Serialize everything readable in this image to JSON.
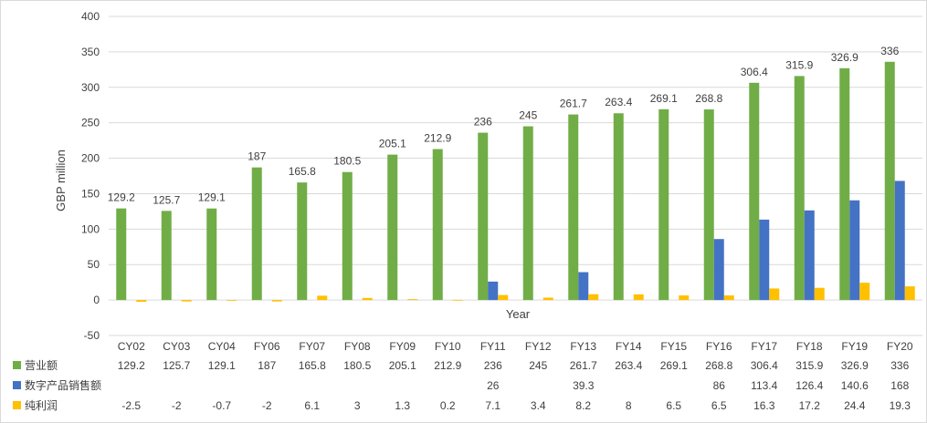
{
  "chart_data": {
    "type": "bar",
    "title": "",
    "xlabel": "Year",
    "ylabel": "GBP million",
    "ylim": [
      -50,
      400
    ],
    "yticks": [
      -50,
      0,
      50,
      100,
      150,
      200,
      250,
      300,
      350,
      400
    ],
    "grid": true,
    "legend": "data-table-left",
    "categories": [
      "CY02",
      "CY03",
      "CY04",
      "FY06",
      "FY07",
      "FY08",
      "FY09",
      "FY10",
      "FY11",
      "FY12",
      "FY13",
      "FY14",
      "FY15",
      "FY16",
      "FY17",
      "FY18",
      "FY19",
      "FY20"
    ],
    "series": [
      {
        "name": "营业额",
        "color": "#70ad47",
        "values": [
          129.2,
          125.7,
          129.1,
          187,
          165.8,
          180.5,
          205.1,
          212.9,
          236,
          245,
          261.7,
          263.4,
          269.1,
          268.8,
          306.4,
          315.9,
          326.9,
          336
        ],
        "table_text": [
          "129.2",
          "125.7",
          "129.1",
          "187",
          "165.8",
          "180.5",
          "205.1",
          "212.9",
          "236",
          "245",
          "261.7",
          "263.4",
          "269.1",
          "268.8",
          "306.4",
          "315.9",
          "326.9",
          "336"
        ]
      },
      {
        "name": "数字产品销售额",
        "color": "#4472c4",
        "values": [
          null,
          null,
          null,
          null,
          null,
          null,
          null,
          null,
          26,
          null,
          39.3,
          null,
          null,
          86,
          113.4,
          126.4,
          140.6,
          168
        ],
        "table_text": [
          "",
          "",
          "",
          "",
          "",
          "",
          "",
          "",
          "26",
          "",
          "39.3",
          "",
          "",
          "86",
          "113.4",
          "126.4",
          "140.6",
          "168"
        ]
      },
      {
        "name": "纯利润",
        "color": "#ffc000",
        "values": [
          -2.5,
          -2,
          -0.7,
          -2,
          6.1,
          3,
          1.3,
          0.2,
          7.1,
          3.4,
          8.2,
          8,
          6.5,
          6.5,
          16.3,
          17.2,
          24.4,
          19.3
        ],
        "table_text": [
          "-2.5",
          "-2",
          "-0.7",
          "-2",
          "6.1",
          "3",
          "1.3",
          "0.2",
          "7.1",
          "3.4",
          "8.2",
          "8",
          "6.5",
          "6.5",
          "16.3",
          "17.2",
          "24.4",
          "19.3"
        ]
      }
    ]
  }
}
